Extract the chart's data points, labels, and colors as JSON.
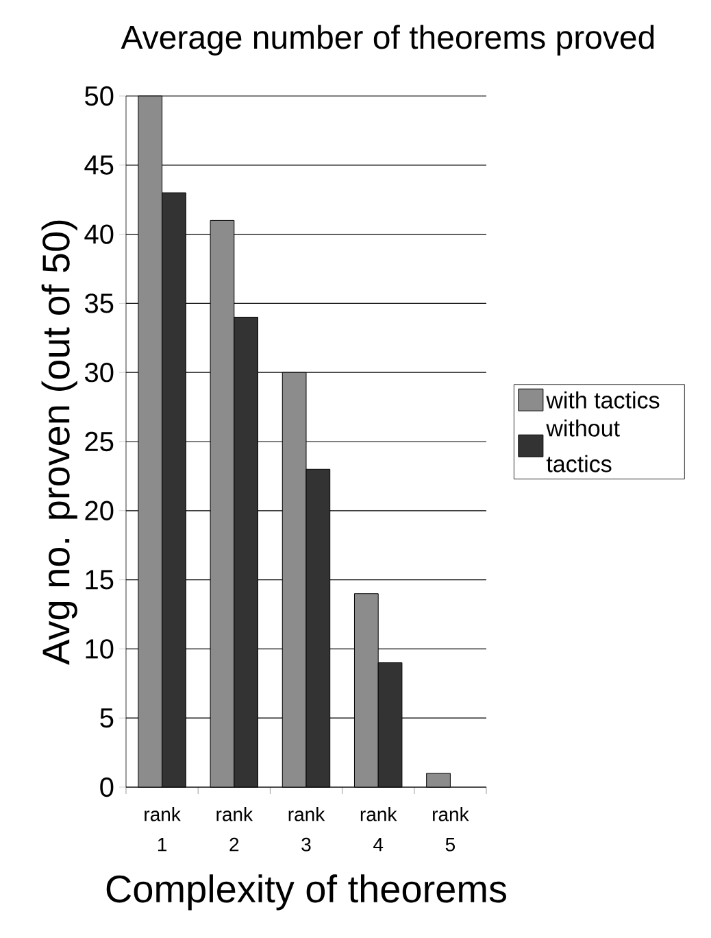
{
  "chart_data": {
    "type": "bar",
    "title": "Average number of theorems proved",
    "xlabel": "Complexity of theorems",
    "ylabel": "Avg no. proven (out of 50)",
    "categories": [
      "rank 1",
      "rank 2",
      "rank 3",
      "rank 4",
      "rank 5"
    ],
    "series": [
      {
        "name": "with tactics",
        "color": "#8c8c8c",
        "values": [
          50,
          41,
          30,
          14,
          1
        ]
      },
      {
        "name": "without tactics",
        "color": "#333333",
        "values": [
          43,
          34,
          23,
          9,
          null
        ]
      }
    ],
    "ylim": [
      0,
      50
    ],
    "yticks": [
      0,
      5,
      10,
      15,
      20,
      25,
      30,
      35,
      40,
      45,
      50
    ],
    "grid": "y",
    "legend": "right"
  }
}
